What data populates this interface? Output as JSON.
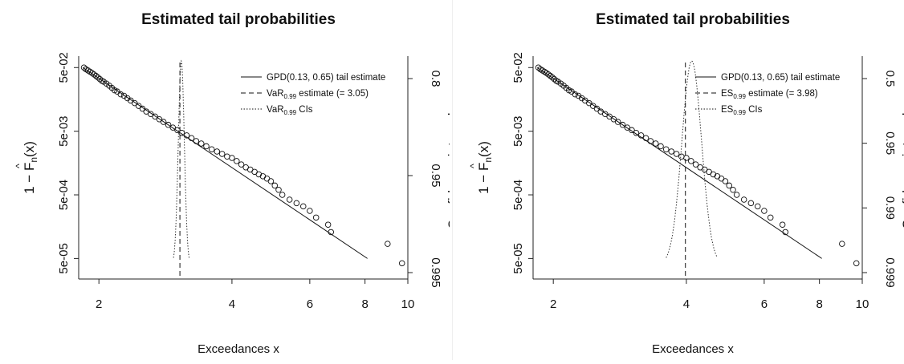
{
  "chart_data": [
    {
      "type": "scatter",
      "title": "Estimated tail probabilities",
      "xlabel": "Exceedances x",
      "ylabel_html": "1 − F̂n(x)",
      "ylabel_parts": [
        "1 − ",
        "F",
        "n",
        "(x)"
      ],
      "y2label": "Confidence intervals",
      "xscale": "log",
      "yscale": "log",
      "xlim": [
        1.8,
        10
      ],
      "ylim": [
        3e-05,
        0.06
      ],
      "x_ticks": [
        2,
        4,
        6,
        8,
        10
      ],
      "x_tick_labels": [
        "2",
        "4",
        "6",
        "8",
        "10"
      ],
      "y_ticks": [
        0.05,
        0.005,
        0.0005,
        5e-05
      ],
      "y_tick_labels": [
        "5e-02",
        "5e-03",
        "5e-04",
        "5e-05"
      ],
      "y2_ticks": [
        0.8,
        0.95,
        0.995
      ],
      "y2_tick_labels": [
        "0.8",
        "0.95",
        "0.995"
      ],
      "estimate_x": 3.05,
      "ci_x": [
        2.95,
        3.2
      ],
      "legend_position": "top-right",
      "legend": [
        {
          "style": "solid",
          "label": "GPD(0.13, 0.65) tail estimate"
        },
        {
          "style": "dashed",
          "prefix": "VaR",
          "sub": "0.99",
          "suffix": " estimate (= 3.05)"
        },
        {
          "style": "dotted",
          "prefix": "VaR",
          "sub": "0.99",
          "suffix": " CIs"
        }
      ],
      "line": {
        "x": [
          1.84,
          8.1
        ],
        "y": [
          0.05,
          5e-05
        ]
      },
      "points": {
        "x": [
          1.85,
          1.87,
          1.89,
          1.91,
          1.93,
          1.95,
          1.97,
          1.99,
          2.01,
          2.03,
          2.05,
          2.08,
          2.11,
          2.14,
          2.17,
          2.2,
          2.24,
          2.28,
          2.32,
          2.36,
          2.41,
          2.46,
          2.51,
          2.56,
          2.62,
          2.68,
          2.74,
          2.8,
          2.87,
          2.94,
          3.01,
          3.08,
          3.16,
          3.24,
          3.32,
          3.41,
          3.5,
          3.6,
          3.7,
          3.8,
          3.9,
          4.0,
          4.1,
          4.2,
          4.3,
          4.4,
          4.5,
          4.6,
          4.7,
          4.8,
          4.9,
          5.0,
          5.1,
          5.2,
          5.4,
          5.6,
          5.8,
          6.0,
          6.2,
          6.6,
          6.7,
          9.0,
          9.7
        ],
        "y": [
          0.05,
          0.047,
          0.045,
          0.043,
          0.041,
          0.039,
          0.037,
          0.035,
          0.033,
          0.031,
          0.03,
          0.028,
          0.026,
          0.024,
          0.022,
          0.021,
          0.019,
          0.018,
          0.0165,
          0.0152,
          0.0138,
          0.0125,
          0.0113,
          0.0102,
          0.0093,
          0.0085,
          0.0077,
          0.007,
          0.0063,
          0.0057,
          0.0052,
          0.0047,
          0.0043,
          0.0039,
          0.0035,
          0.0032,
          0.0029,
          0.0026,
          0.0024,
          0.0022,
          0.002,
          0.0019,
          0.0017,
          0.0015,
          0.00135,
          0.00125,
          0.00115,
          0.00105,
          0.00098,
          0.0009,
          0.00082,
          0.0007,
          0.0006,
          0.0005,
          0.00042,
          0.00037,
          0.00033,
          0.00028,
          0.00022,
          0.00017,
          0.00013,
          8.5e-05,
          4.2e-05
        ]
      }
    },
    {
      "type": "scatter",
      "title": "Estimated tail probabilities",
      "xlabel": "Exceedances x",
      "ylabel_parts": [
        "1 − ",
        "F",
        "n",
        "(x)"
      ],
      "y2label": "Confidence intervals",
      "xscale": "log",
      "yscale": "log",
      "xlim": [
        1.8,
        10
      ],
      "ylim": [
        3e-05,
        0.06
      ],
      "x_ticks": [
        2,
        4,
        6,
        8,
        10
      ],
      "x_tick_labels": [
        "2",
        "4",
        "6",
        "8",
        "10"
      ],
      "y_ticks": [
        0.05,
        0.005,
        0.0005,
        5e-05
      ],
      "y_tick_labels": [
        "5e-02",
        "5e-03",
        "5e-04",
        "5e-05"
      ],
      "y2_ticks": [
        0.5,
        0.95,
        0.99,
        0.999
      ],
      "y2_tick_labels": [
        "0.5",
        "0.95",
        "0.99",
        "0.999"
      ],
      "estimate_x": 3.98,
      "ci_x": [
        3.6,
        4.7
      ],
      "legend_position": "top-right",
      "legend": [
        {
          "style": "solid",
          "label": "GPD(0.13, 0.65) tail estimate"
        },
        {
          "style": "dashed",
          "prefix": "ES",
          "sub": "0.99",
          "suffix": " estimate (= 3.98)"
        },
        {
          "style": "dotted",
          "prefix": "ES",
          "sub": "0.99",
          "suffix": " CIs"
        }
      ],
      "line": {
        "x": [
          1.84,
          8.1
        ],
        "y": [
          0.05,
          5e-05
        ]
      },
      "points": {
        "x": [
          1.85,
          1.87,
          1.89,
          1.91,
          1.93,
          1.95,
          1.97,
          1.99,
          2.01,
          2.03,
          2.05,
          2.08,
          2.11,
          2.14,
          2.17,
          2.2,
          2.24,
          2.28,
          2.32,
          2.36,
          2.41,
          2.46,
          2.51,
          2.56,
          2.62,
          2.68,
          2.74,
          2.8,
          2.87,
          2.94,
          3.01,
          3.08,
          3.16,
          3.24,
          3.32,
          3.41,
          3.5,
          3.6,
          3.7,
          3.8,
          3.9,
          4.0,
          4.1,
          4.2,
          4.3,
          4.4,
          4.5,
          4.6,
          4.7,
          4.8,
          4.9,
          5.0,
          5.1,
          5.2,
          5.4,
          5.6,
          5.8,
          6.0,
          6.2,
          6.6,
          6.7,
          9.0,
          9.7
        ],
        "y": [
          0.05,
          0.047,
          0.045,
          0.043,
          0.041,
          0.039,
          0.037,
          0.035,
          0.033,
          0.031,
          0.03,
          0.028,
          0.026,
          0.024,
          0.022,
          0.021,
          0.019,
          0.018,
          0.0165,
          0.0152,
          0.0138,
          0.0125,
          0.0113,
          0.0102,
          0.0093,
          0.0085,
          0.0077,
          0.007,
          0.0063,
          0.0057,
          0.0052,
          0.0047,
          0.0043,
          0.0039,
          0.0035,
          0.0032,
          0.0029,
          0.0026,
          0.0024,
          0.0022,
          0.002,
          0.0019,
          0.0017,
          0.0015,
          0.00135,
          0.00125,
          0.00115,
          0.00105,
          0.00098,
          0.0009,
          0.00082,
          0.0007,
          0.0006,
          0.0005,
          0.00042,
          0.00037,
          0.00033,
          0.00028,
          0.00022,
          0.00017,
          0.00013,
          8.5e-05,
          4.2e-05
        ]
      }
    }
  ]
}
